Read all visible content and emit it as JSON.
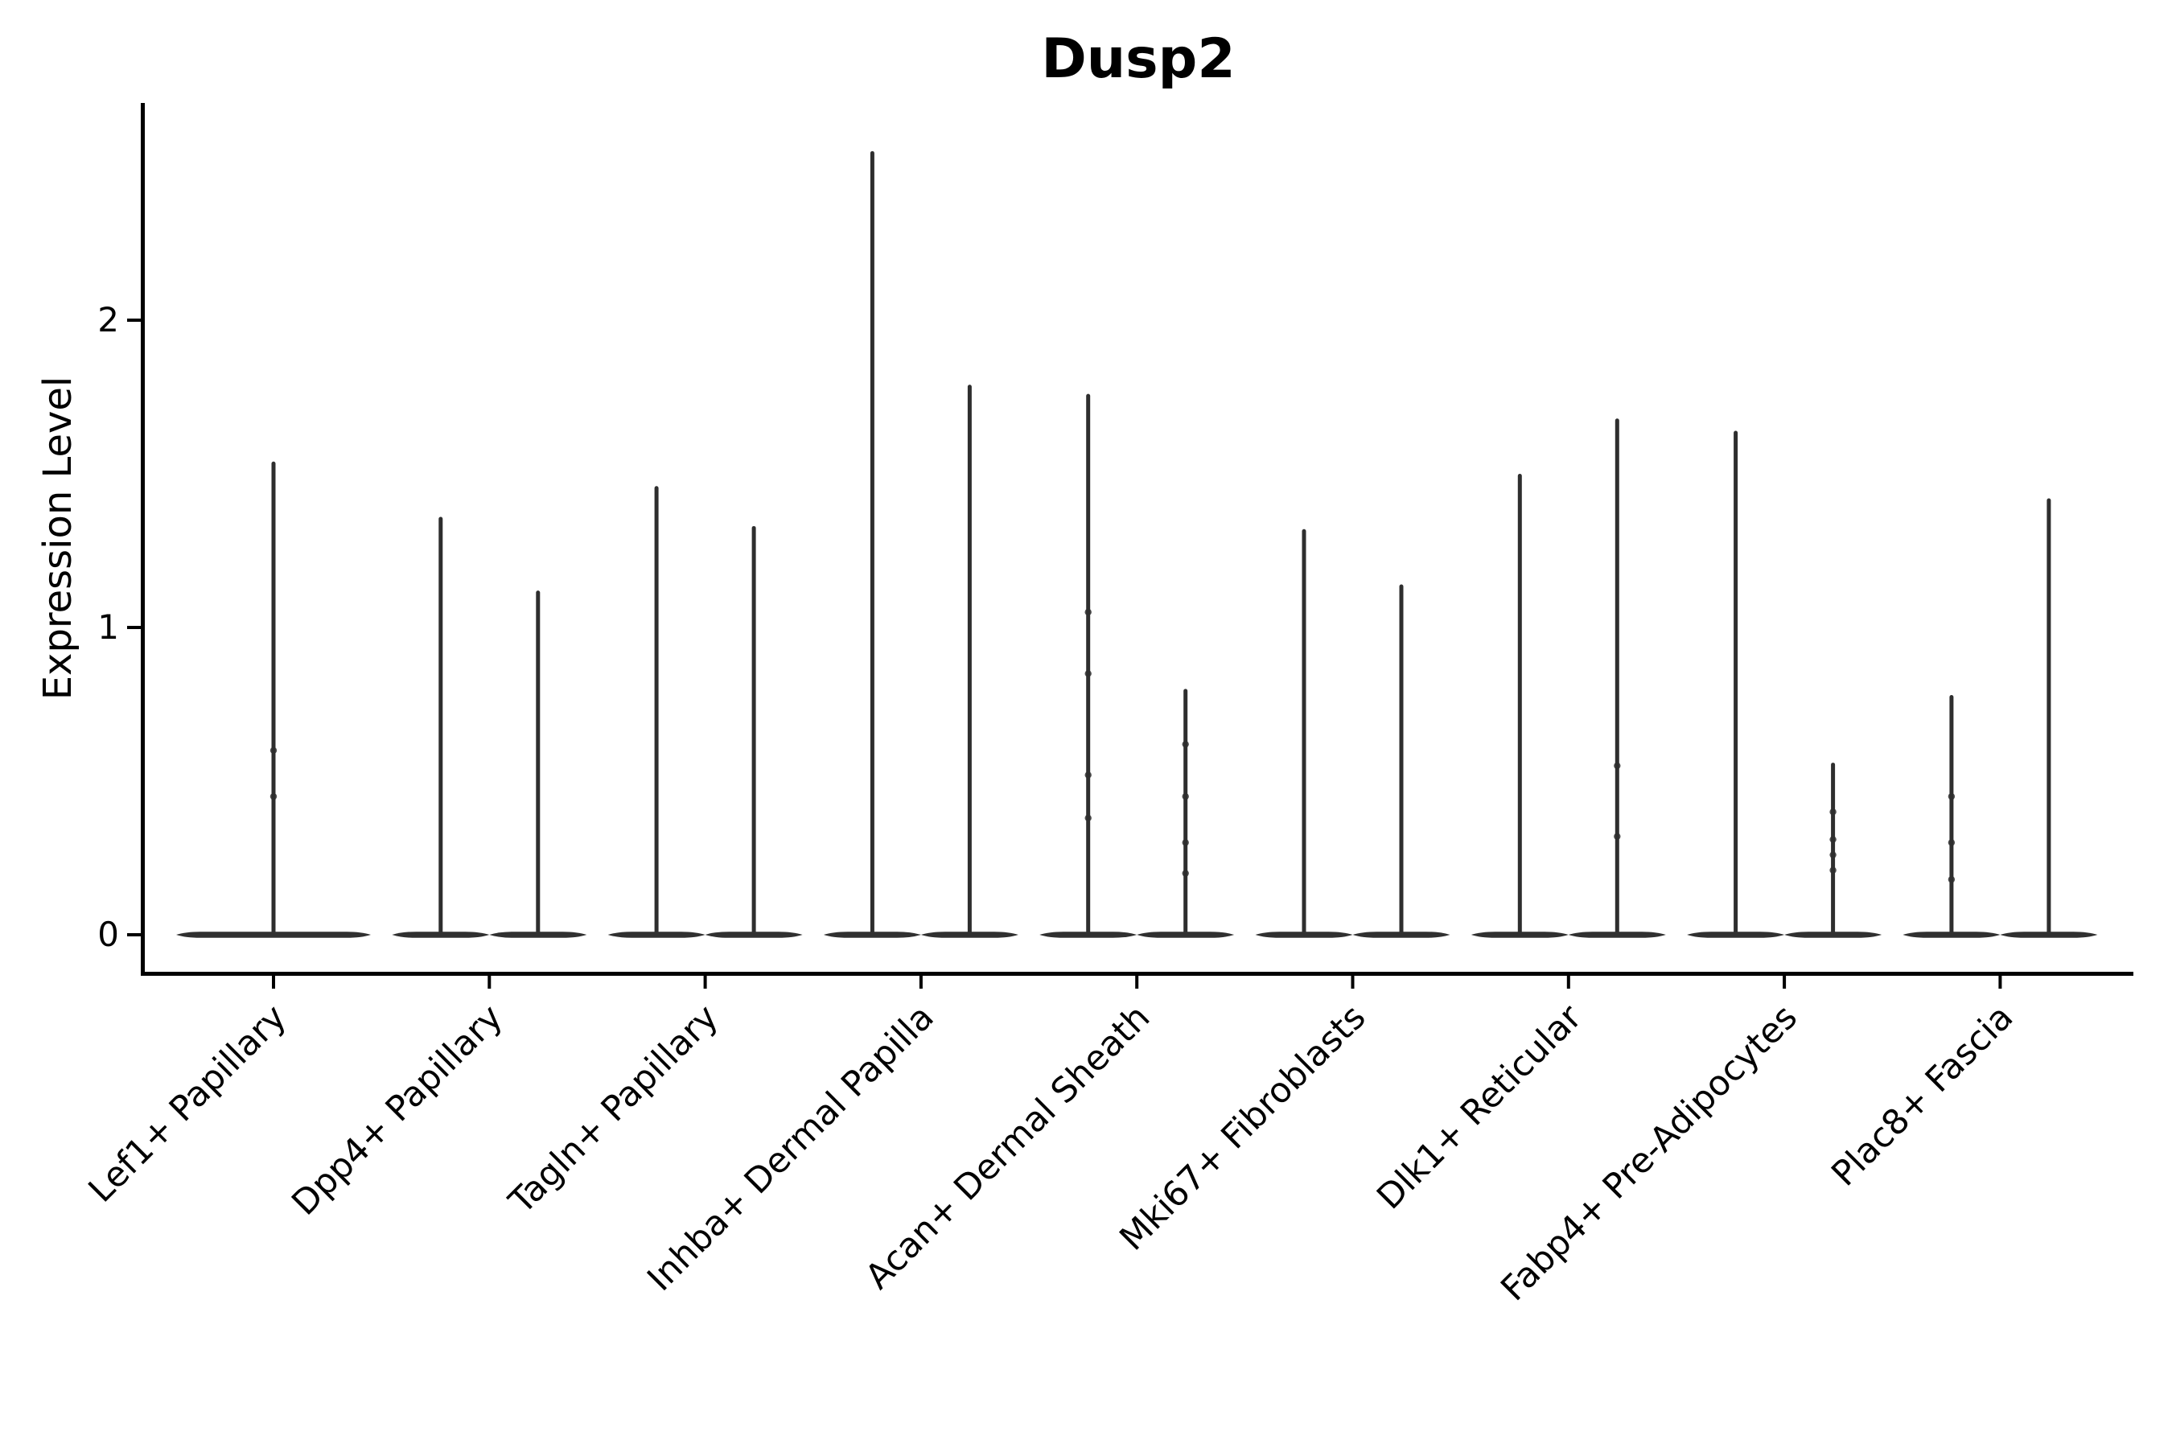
{
  "figure": {
    "title": "Dusp2",
    "ylabel": "Expression Level"
  },
  "chart_data": {
    "type": "violin",
    "title": "Dusp2",
    "xlabel": "",
    "ylabel": "Expression Level",
    "ylim": [
      0,
      2.71
    ],
    "yticks": [
      0,
      1,
      2
    ],
    "grid": false,
    "legend": null,
    "style": {
      "line_color": "#2e2e2e",
      "base_color": "#303030",
      "axis_color": "#000000",
      "background": "#ffffff"
    },
    "categories": [
      "Lef1+ Papillary",
      "Dpp4+ Papillary",
      "Tagln+ Papillary",
      "Inhba+ Dermal Papilla",
      "Acan+ Dermal Sheath",
      "Mki67+ Fibroblasts",
      "Dlk1+ Reticular",
      "Fabp4+ Pre-Adipocytes",
      "Plac8+ Fascia"
    ],
    "description": "Violin plot of Dusp2 expression per fibroblast cluster; each violin is flat at 0 with a thin spike up to its maximum expression. Categories 2-9 contain two split-group violins; category 1 has a single full-width violin.",
    "violins": [
      {
        "category_index": 0,
        "side": "full",
        "max": 1.54,
        "dots": [
          0.6,
          0.45
        ]
      },
      {
        "category_index": 1,
        "side": "left",
        "max": 1.36,
        "dots": []
      },
      {
        "category_index": 1,
        "side": "right",
        "max": 1.12,
        "dots": []
      },
      {
        "category_index": 2,
        "side": "left",
        "max": 1.46,
        "dots": []
      },
      {
        "category_index": 2,
        "side": "right",
        "max": 1.33,
        "dots": []
      },
      {
        "category_index": 3,
        "side": "left",
        "max": 2.55,
        "dots": []
      },
      {
        "category_index": 3,
        "side": "right",
        "max": 1.79,
        "dots": []
      },
      {
        "category_index": 4,
        "side": "left",
        "max": 1.76,
        "dots": [
          1.05,
          0.85,
          0.52,
          0.38
        ]
      },
      {
        "category_index": 4,
        "side": "right",
        "max": 0.8,
        "dots": [
          0.62,
          0.45,
          0.3,
          0.2
        ]
      },
      {
        "category_index": 5,
        "side": "left",
        "max": 1.32,
        "dots": []
      },
      {
        "category_index": 5,
        "side": "right",
        "max": 1.14,
        "dots": []
      },
      {
        "category_index": 6,
        "side": "left",
        "max": 1.5,
        "dots": []
      },
      {
        "category_index": 6,
        "side": "right",
        "max": 1.68,
        "dots": [
          0.55,
          0.32
        ]
      },
      {
        "category_index": 7,
        "side": "left",
        "max": 1.64,
        "dots": []
      },
      {
        "category_index": 7,
        "side": "right",
        "max": 0.56,
        "dots": [
          0.4,
          0.31,
          0.26,
          0.21
        ]
      },
      {
        "category_index": 8,
        "side": "left",
        "max": 0.78,
        "dots": [
          0.45,
          0.3,
          0.18
        ]
      },
      {
        "category_index": 8,
        "side": "right",
        "max": 1.42,
        "dots": []
      }
    ]
  }
}
